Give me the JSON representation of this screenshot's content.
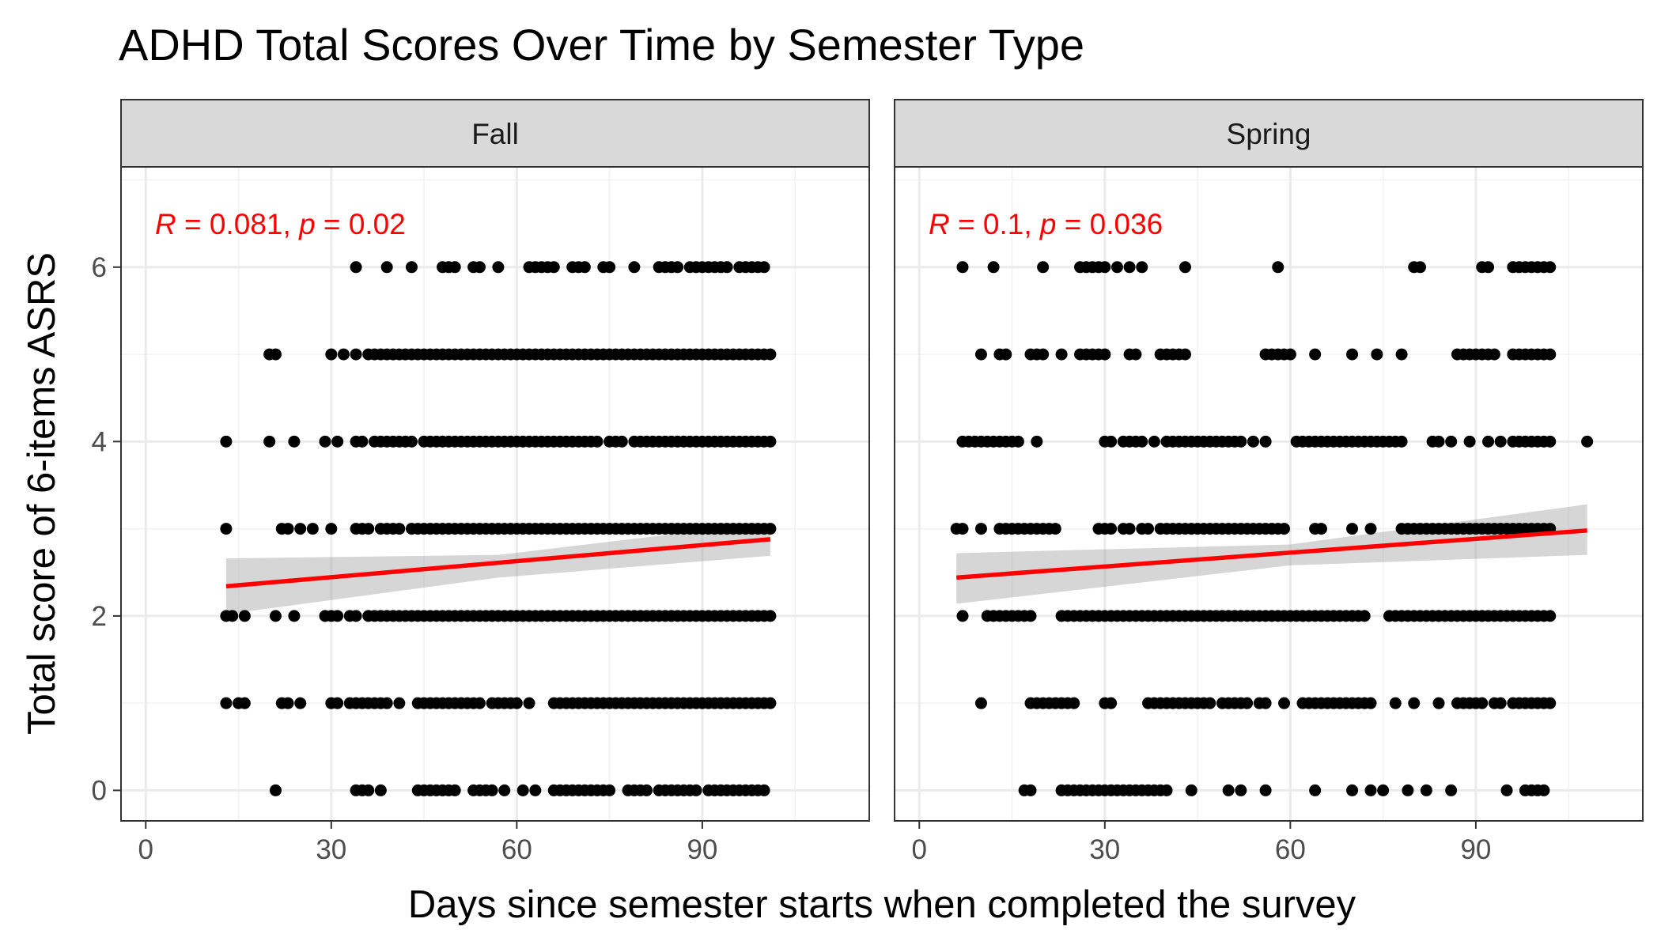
{
  "chart_data": {
    "type": "scatter",
    "title": "ADHD Total Scores Over Time by Semester Type",
    "xlabel": "Days since semester starts when completed the survey",
    "ylabel": "Total score of 6-items ASRS",
    "xlim": [
      -4,
      117
    ],
    "ylim": [
      -0.35,
      7.15
    ],
    "x_ticks": [
      0,
      30,
      60,
      90
    ],
    "x_tick_labels": [
      "0",
      "30",
      "60",
      "90"
    ],
    "y_ticks": [
      0,
      2,
      4,
      6
    ],
    "y_tick_labels": [
      "0",
      "2",
      "4",
      "6"
    ],
    "grid": true,
    "facets": [
      {
        "name": "Fall",
        "stat": {
          "r": "0.081",
          "p": "0.02"
        },
        "fit": {
          "x": [
            13,
            101
          ],
          "y": [
            2.34,
            2.88
          ]
        },
        "band": {
          "x": [
            13,
            57,
            101
          ],
          "upper": [
            2.66,
            2.7,
            3.07
          ],
          "lower": [
            2.02,
            2.44,
            2.69
          ]
        },
        "points": [
          {
            "y": 6,
            "x": [
              34,
              39,
              43,
              48,
              49,
              50,
              53,
              54,
              57,
              62,
              63,
              64,
              65,
              66,
              69,
              70,
              71,
              74,
              75,
              79,
              83,
              84,
              85,
              86,
              88,
              89,
              90,
              91,
              92,
              93,
              94,
              96,
              97,
              98,
              99,
              100
            ]
          },
          {
            "y": 5,
            "x": [
              20,
              21,
              30,
              32,
              34,
              36,
              37,
              38,
              39,
              40,
              41,
              42,
              43,
              44,
              45,
              46,
              47,
              48,
              49,
              50,
              51,
              52,
              53,
              54,
              55,
              56,
              57,
              58,
              59,
              60,
              61,
              62,
              63,
              64,
              65,
              66,
              67,
              68,
              69,
              70,
              71,
              72,
              73,
              74,
              75,
              76,
              77,
              78,
              79,
              80,
              81,
              82,
              83,
              84,
              85,
              86,
              87,
              88,
              89,
              90,
              91,
              92,
              93,
              94,
              95,
              96,
              97,
              98,
              99,
              100,
              101
            ]
          },
          {
            "y": 4,
            "x": [
              13,
              20,
              24,
              29,
              31,
              34,
              35,
              37,
              38,
              39,
              40,
              41,
              42,
              43,
              45,
              46,
              47,
              48,
              49,
              50,
              51,
              52,
              53,
              54,
              55,
              56,
              57,
              58,
              59,
              60,
              61,
              62,
              63,
              64,
              65,
              66,
              67,
              68,
              69,
              70,
              71,
              72,
              73,
              75,
              76,
              77,
              79,
              80,
              81,
              82,
              83,
              84,
              85,
              86,
              87,
              88,
              89,
              90,
              91,
              92,
              93,
              94,
              95,
              96,
              97,
              98,
              99,
              100,
              101
            ]
          },
          {
            "y": 3,
            "x": [
              13,
              22,
              23,
              25,
              27,
              30,
              34,
              35,
              36,
              38,
              39,
              40,
              41,
              43,
              44,
              45,
              46,
              47,
              48,
              49,
              50,
              51,
              52,
              53,
              54,
              55,
              56,
              57,
              58,
              59,
              60,
              61,
              62,
              63,
              64,
              65,
              66,
              67,
              68,
              69,
              70,
              71,
              72,
              73,
              74,
              75,
              76,
              77,
              78,
              79,
              80,
              81,
              82,
              83,
              84,
              85,
              86,
              87,
              88,
              89,
              90,
              91,
              92,
              93,
              94,
              95,
              96,
              97,
              98,
              99,
              100,
              101
            ]
          },
          {
            "y": 2,
            "x": [
              13,
              14,
              16,
              21,
              24,
              29,
              30,
              31,
              33,
              34,
              36,
              37,
              38,
              39,
              40,
              41,
              42,
              43,
              44,
              45,
              46,
              47,
              48,
              49,
              50,
              51,
              52,
              53,
              54,
              55,
              56,
              57,
              58,
              59,
              60,
              61,
              62,
              63,
              64,
              65,
              66,
              67,
              68,
              69,
              70,
              71,
              72,
              73,
              74,
              75,
              76,
              77,
              78,
              79,
              80,
              81,
              82,
              83,
              84,
              85,
              86,
              87,
              88,
              89,
              90,
              91,
              92,
              93,
              94,
              95,
              96,
              97,
              98,
              99,
              100,
              101
            ]
          },
          {
            "y": 1,
            "x": [
              13,
              15,
              16,
              22,
              23,
              25,
              30,
              31,
              33,
              34,
              35,
              36,
              37,
              38,
              39,
              41,
              44,
              45,
              46,
              47,
              48,
              49,
              50,
              51,
              52,
              53,
              54,
              56,
              57,
              58,
              59,
              60,
              62,
              66,
              67,
              68,
              69,
              70,
              71,
              72,
              73,
              74,
              75,
              76,
              77,
              78,
              79,
              80,
              81,
              82,
              83,
              84,
              85,
              86,
              87,
              88,
              89,
              90,
              91,
              92,
              93,
              94,
              95,
              96,
              97,
              98,
              99,
              100,
              101
            ]
          },
          {
            "y": 0,
            "x": [
              21,
              34,
              35,
              36,
              38,
              44,
              45,
              46,
              47,
              48,
              49,
              50,
              53,
              54,
              55,
              56,
              58,
              61,
              63,
              66,
              67,
              68,
              69,
              70,
              71,
              72,
              73,
              74,
              75,
              78,
              79,
              80,
              81,
              83,
              84,
              85,
              86,
              87,
              88,
              89,
              91,
              92,
              93,
              94,
              95,
              96,
              97,
              98,
              99,
              100
            ]
          }
        ]
      },
      {
        "name": "Spring",
        "stat": {
          "r": "0.1",
          "p": "0.036"
        },
        "fit": {
          "x": [
            6,
            108
          ],
          "y": [
            2.44,
            2.98
          ]
        },
        "band": {
          "x": [
            6,
            60,
            108
          ],
          "upper": [
            2.72,
            2.82,
            3.28
          ],
          "lower": [
            2.14,
            2.58,
            2.7
          ]
        },
        "points": [
          {
            "y": 6,
            "x": [
              7,
              12,
              20,
              26,
              27,
              28,
              29,
              30,
              32,
              34,
              36,
              43,
              58,
              80,
              81,
              91,
              92,
              96,
              97,
              98,
              99,
              100,
              101,
              102
            ]
          },
          {
            "y": 5,
            "x": [
              10,
              13,
              14,
              18,
              19,
              20,
              23,
              26,
              27,
              28,
              29,
              30,
              34,
              35,
              39,
              40,
              41,
              42,
              43,
              56,
              57,
              58,
              59,
              60,
              64,
              70,
              74,
              78,
              87,
              88,
              89,
              90,
              91,
              92,
              93,
              96,
              97,
              98,
              99,
              100,
              101,
              102
            ]
          },
          {
            "y": 4,
            "x": [
              7,
              8,
              9,
              10,
              11,
              12,
              13,
              14,
              15,
              16,
              19,
              30,
              31,
              33,
              34,
              35,
              36,
              38,
              40,
              41,
              42,
              43,
              44,
              45,
              46,
              47,
              48,
              49,
              50,
              51,
              52,
              54,
              56,
              61,
              62,
              63,
              64,
              65,
              66,
              67,
              68,
              69,
              70,
              71,
              72,
              73,
              74,
              75,
              76,
              77,
              78,
              83,
              84,
              86,
              89,
              92,
              94,
              96,
              97,
              98,
              99,
              100,
              101,
              102,
              108
            ]
          },
          {
            "y": 3,
            "x": [
              6,
              7,
              10,
              13,
              14,
              15,
              16,
              17,
              18,
              19,
              20,
              21,
              22,
              29,
              30,
              31,
              33,
              34,
              36,
              37,
              39,
              40,
              41,
              42,
              43,
              44,
              45,
              46,
              47,
              48,
              49,
              50,
              51,
              52,
              53,
              54,
              55,
              56,
              57,
              58,
              59,
              64,
              65,
              70,
              73,
              78,
              79,
              80,
              81,
              82,
              83,
              84,
              85,
              86,
              87,
              88,
              89,
              90,
              91,
              92,
              93,
              94,
              95,
              96,
              97,
              98,
              99,
              100,
              101,
              102
            ]
          },
          {
            "y": 2,
            "x": [
              7,
              11,
              12,
              13,
              14,
              15,
              16,
              17,
              18,
              23,
              24,
              25,
              26,
              27,
              28,
              29,
              30,
              31,
              32,
              33,
              34,
              35,
              36,
              37,
              38,
              39,
              40,
              41,
              42,
              43,
              44,
              45,
              46,
              47,
              48,
              49,
              50,
              51,
              52,
              53,
              54,
              55,
              56,
              57,
              58,
              59,
              60,
              61,
              62,
              63,
              64,
              65,
              66,
              67,
              68,
              69,
              70,
              71,
              72,
              76,
              77,
              78,
              79,
              80,
              81,
              82,
              83,
              84,
              85,
              86,
              87,
              88,
              89,
              90,
              91,
              92,
              93,
              94,
              95,
              96,
              97,
              98,
              99,
              100,
              101,
              102
            ]
          },
          {
            "y": 1,
            "x": [
              10,
              18,
              19,
              20,
              21,
              22,
              23,
              24,
              25,
              30,
              31,
              37,
              38,
              39,
              40,
              41,
              42,
              43,
              44,
              45,
              46,
              47,
              49,
              50,
              51,
              52,
              53,
              55,
              56,
              59,
              62,
              63,
              64,
              65,
              66,
              67,
              68,
              69,
              70,
              71,
              72,
              73,
              77,
              80,
              84,
              87,
              88,
              89,
              90,
              91,
              93,
              94,
              96,
              97,
              98,
              99,
              100,
              101,
              102
            ]
          },
          {
            "y": 0,
            "x": [
              17,
              18,
              23,
              24,
              25,
              26,
              27,
              28,
              29,
              30,
              31,
              32,
              33,
              34,
              35,
              36,
              37,
              38,
              39,
              40,
              44,
              50,
              52,
              56,
              64,
              70,
              73,
              75,
              79,
              82,
              86,
              95,
              98,
              99,
              100,
              101
            ]
          }
        ]
      }
    ]
  }
}
